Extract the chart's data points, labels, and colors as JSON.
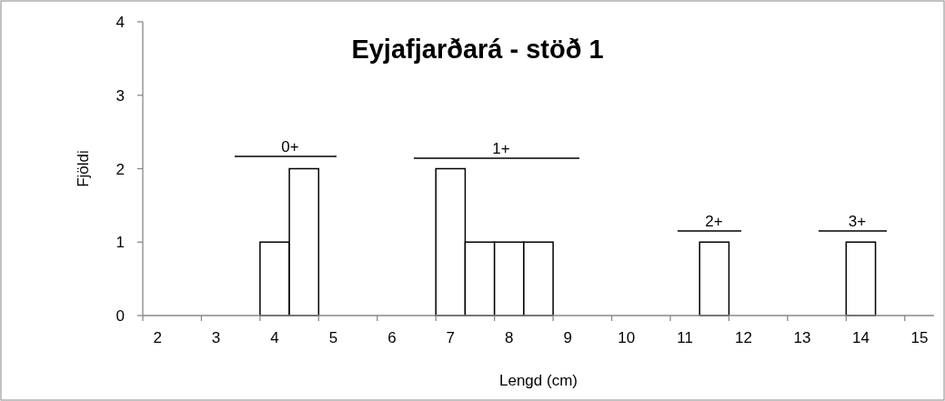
{
  "chart_data": {
    "type": "bar",
    "title": "Eyjafjarðará - stöð 1",
    "xlabel": "Lengd (cm)",
    "ylabel": "Fjöldi",
    "categories": [
      "2",
      null,
      "3",
      null,
      "4",
      null,
      "5",
      null,
      "6",
      null,
      "7",
      null,
      "8",
      null,
      "9",
      null,
      "10",
      null,
      "11",
      null,
      "12",
      null,
      "13",
      null,
      "14",
      null,
      "15"
    ],
    "values": [
      0,
      0,
      0,
      0,
      1,
      2,
      0,
      0,
      0,
      0,
      2,
      1,
      1,
      1,
      0,
      0,
      0,
      0,
      0,
      1,
      0,
      0,
      0,
      0,
      1,
      0,
      0
    ],
    "color": "#ffffff",
    "ylim": [
      0,
      4
    ],
    "yticks": [
      0,
      1,
      2,
      3,
      4
    ],
    "annotations": [
      "0+",
      "1+",
      "2+",
      "3+"
    ]
  }
}
